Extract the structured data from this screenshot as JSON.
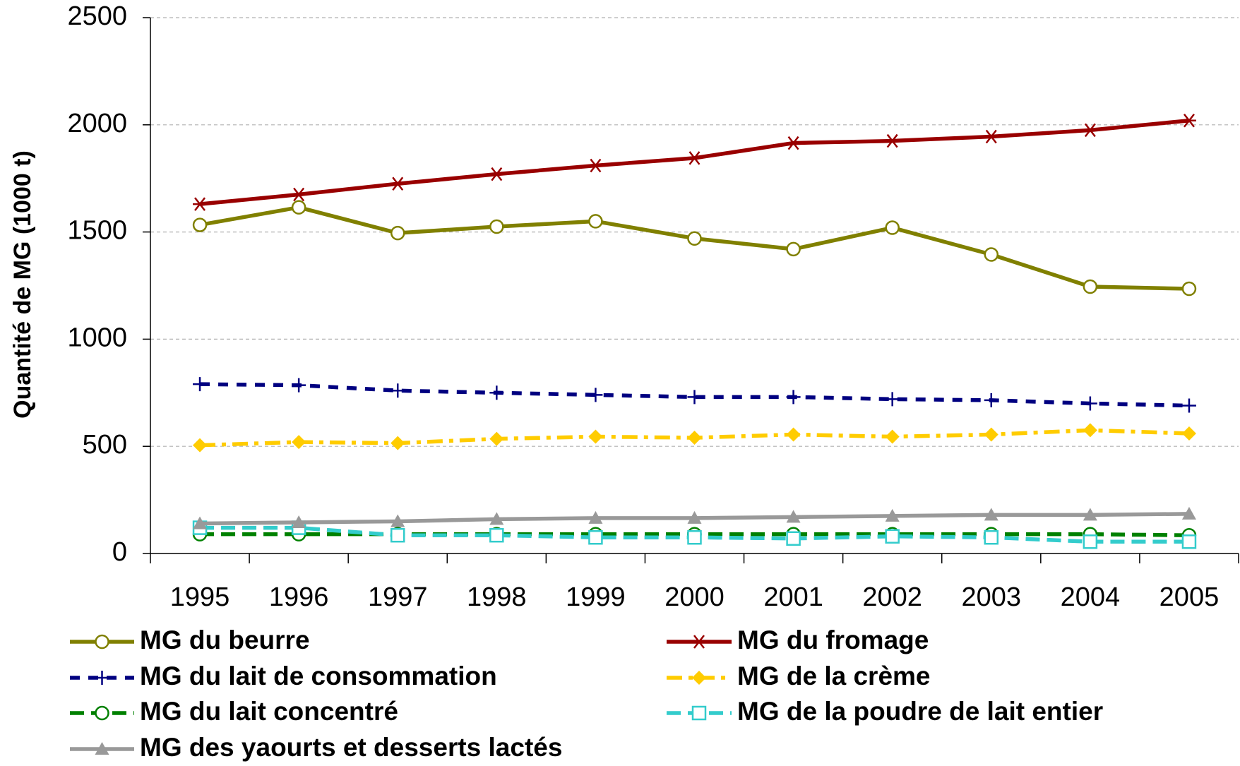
{
  "chart_data": {
    "type": "line",
    "y_label": "Quantité de MG (1000 t)",
    "categories": [
      "1995",
      "1996",
      "1997",
      "1998",
      "1999",
      "2000",
      "2001",
      "2002",
      "2003",
      "2004",
      "2005"
    ],
    "ylim": [
      0,
      2500
    ],
    "yticks": [
      0,
      500,
      1000,
      1500,
      2000,
      2500
    ],
    "grid": true,
    "series": [
      {
        "name": "MG du beurre",
        "color": "#808000",
        "marker": "circle",
        "dash": "solid",
        "values": [
          1533,
          1615,
          1495,
          1525,
          1550,
          1470,
          1420,
          1520,
          1395,
          1245,
          1235
        ]
      },
      {
        "name": "MG du fromage",
        "color": "#990000",
        "marker": "star",
        "dash": "solid",
        "values": [
          1630,
          1675,
          1725,
          1770,
          1810,
          1845,
          1915,
          1925,
          1945,
          1975,
          2020
        ]
      },
      {
        "name": "MG du lait de consommation",
        "color": "#000080",
        "marker": "plus",
        "dash": "dash",
        "values": [
          790,
          785,
          760,
          750,
          740,
          730,
          730,
          720,
          715,
          700,
          690
        ]
      },
      {
        "name": "MG de la crème",
        "color": "#FFCC00",
        "marker": "diamond",
        "dash": "dashdot",
        "values": [
          505,
          520,
          515,
          535,
          545,
          540,
          555,
          545,
          555,
          575,
          560
        ]
      },
      {
        "name": "MG du lait concentré",
        "color": "#008000",
        "marker": "circle",
        "dash": "longdash",
        "values": [
          90,
          90,
          90,
          90,
          90,
          90,
          90,
          90,
          90,
          90,
          85
        ]
      },
      {
        "name": "MG de la poudre de lait entier",
        "color": "#33CCCC",
        "marker": "square",
        "dash": "longdash",
        "values": [
          120,
          120,
          85,
          85,
          75,
          75,
          70,
          80,
          75,
          55,
          55
        ]
      },
      {
        "name": "MG des yaourts et desserts lactés",
        "color": "#999999",
        "marker": "triangle",
        "dash": "solid",
        "values": [
          140,
          145,
          150,
          160,
          165,
          165,
          170,
          175,
          180,
          180,
          185
        ]
      }
    ]
  }
}
